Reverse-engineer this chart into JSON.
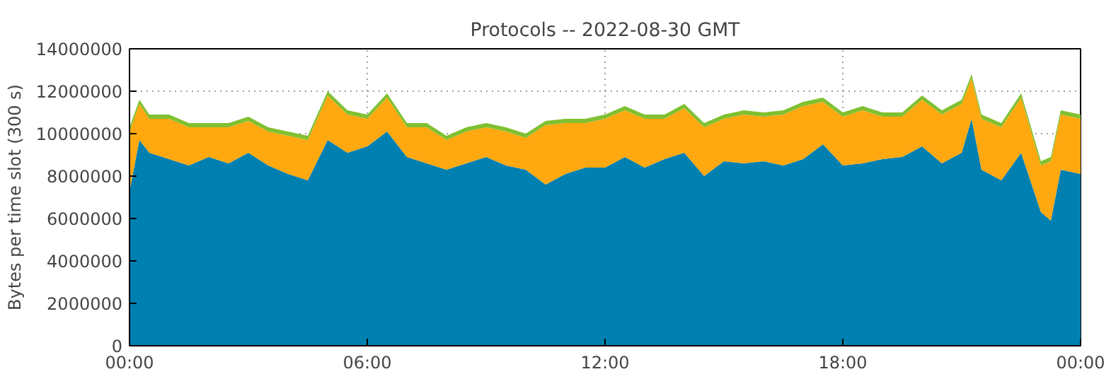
{
  "chart_data": {
    "type": "area",
    "stacked": true,
    "title": "Protocols -- 2022-08-30 GMT",
    "ylabel": "Bytes per time slot (300 s)",
    "x": [
      0,
      0.25,
      0.5,
      1,
      1.5,
      2,
      2.5,
      3,
      3.5,
      4,
      4.5,
      5,
      5.5,
      6,
      6.5,
      7,
      7.5,
      8,
      8.5,
      9,
      9.5,
      10,
      10.5,
      11,
      11.5,
      12,
      12.5,
      13,
      13.5,
      14,
      14.5,
      15,
      15.5,
      16,
      16.5,
      17,
      17.5,
      18,
      18.5,
      19,
      19.5,
      20,
      20.5,
      21,
      21.25,
      21.5,
      22,
      22.5,
      23,
      23.25,
      23.5,
      24
    ],
    "series": [
      {
        "color": "#0080b0",
        "values": [
          7300000,
          9700000,
          9100000,
          8800000,
          8500000,
          8900000,
          8600000,
          9100000,
          8500000,
          8100000,
          7800000,
          9700000,
          9100000,
          9400000,
          10100000,
          8900000,
          8600000,
          8300000,
          8600000,
          8900000,
          8500000,
          8300000,
          7600000,
          8100000,
          8400000,
          8400000,
          8900000,
          8400000,
          8800000,
          9100000,
          8000000,
          8700000,
          8600000,
          8700000,
          8500000,
          8800000,
          9500000,
          8500000,
          8600000,
          8800000,
          8900000,
          9400000,
          8600000,
          9100000,
          10700000,
          8300000,
          7800000,
          9100000,
          6300000,
          5900000,
          8300000,
          8100000
        ]
      },
      {
        "color": "#ffa810",
        "values": [
          2800000,
          1700000,
          1600000,
          1900000,
          1800000,
          1400000,
          1700000,
          1500000,
          1600000,
          1800000,
          1900000,
          2100000,
          1800000,
          1300000,
          1600000,
          1400000,
          1700000,
          1400000,
          1500000,
          1400000,
          1600000,
          1500000,
          2800000,
          2400000,
          2100000,
          2300000,
          2200000,
          2300000,
          1900000,
          2100000,
          2300000,
          2000000,
          2300000,
          2100000,
          2400000,
          2500000,
          2000000,
          2300000,
          2500000,
          2000000,
          1900000,
          2200000,
          2300000,
          2300000,
          1900000,
          2400000,
          2500000,
          2600000,
          2200000,
          2800000,
          2600000,
          2600000
        ]
      },
      {
        "color": "#80c030",
        "values": [
          200000,
          200000,
          200000,
          200000,
          200000,
          200000,
          200000,
          200000,
          200000,
          200000,
          200000,
          200000,
          200000,
          200000,
          200000,
          200000,
          200000,
          200000,
          200000,
          200000,
          200000,
          200000,
          200000,
          200000,
          200000,
          200000,
          200000,
          200000,
          200000,
          200000,
          200000,
          200000,
          200000,
          200000,
          200000,
          200000,
          200000,
          200000,
          200000,
          200000,
          200000,
          200000,
          200000,
          200000,
          200000,
          200000,
          200000,
          200000,
          200000,
          200000,
          200000,
          200000
        ]
      }
    ],
    "xlim": [
      0,
      24
    ],
    "xticks": [
      {
        "value": 0,
        "label": "00:00"
      },
      {
        "value": 6,
        "label": "06:00"
      },
      {
        "value": 12,
        "label": "12:00"
      },
      {
        "value": 18,
        "label": "18:00"
      },
      {
        "value": 24,
        "label": "00:00"
      }
    ],
    "ylim": [
      0,
      14000000
    ],
    "yticks": [
      0,
      2000000,
      4000000,
      6000000,
      8000000,
      10000000,
      12000000,
      14000000
    ],
    "grid": true
  }
}
